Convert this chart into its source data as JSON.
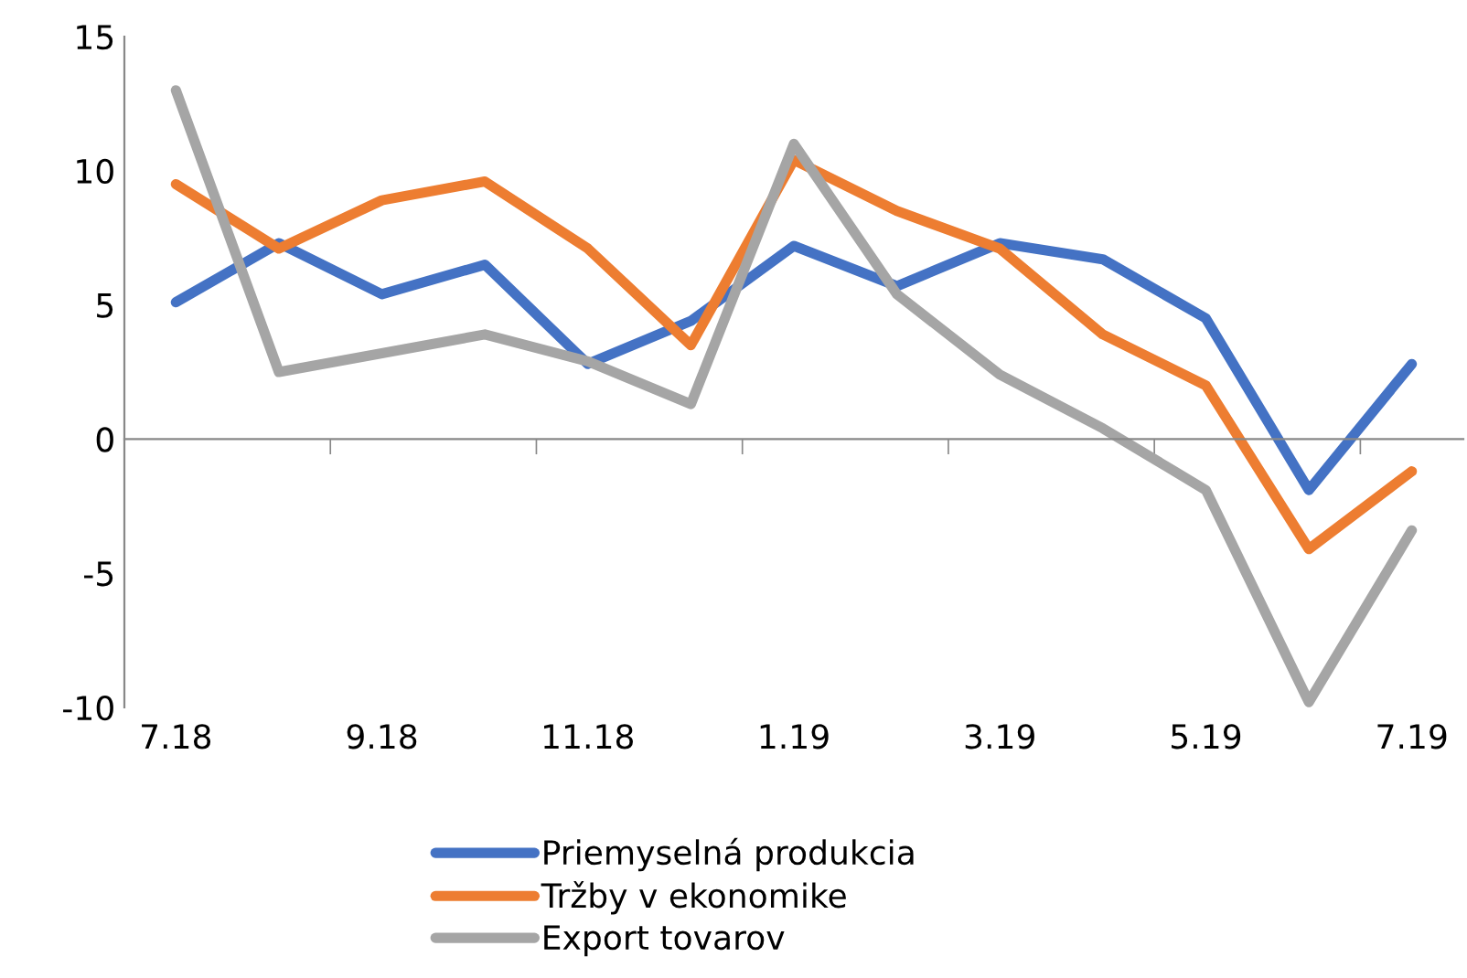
{
  "chart_data": {
    "type": "line",
    "categories": [
      "7.18",
      null,
      "9.18",
      null,
      "11.18",
      null,
      "1.19",
      null,
      "3.19",
      null,
      "5.19",
      null,
      "7.19"
    ],
    "series": [
      {
        "name": "Priemyselná produkcia",
        "color": "#4472c4",
        "values": [
          5.1,
          7.3,
          5.4,
          6.5,
          2.8,
          4.4,
          7.2,
          5.7,
          7.3,
          6.7,
          4.5,
          -1.9,
          2.8
        ]
      },
      {
        "name": "Tržby v ekonomike",
        "color": "#ed7d31",
        "values": [
          9.5,
          7.1,
          8.9,
          9.6,
          7.1,
          3.5,
          10.4,
          8.5,
          7.1,
          3.9,
          2.0,
          -4.1,
          -1.2
        ]
      },
      {
        "name": "Export tovarov",
        "color": "#a5a5a5",
        "values": [
          13.0,
          2.5,
          3.2,
          3.9,
          2.9,
          1.3,
          11.0,
          5.4,
          2.4,
          0.4,
          -1.9,
          -9.8,
          -3.4
        ]
      }
    ],
    "ylim": [
      -10,
      15
    ],
    "yticks": [
      -10,
      -5,
      0,
      5,
      10,
      15
    ],
    "legend": "bottom",
    "marker": "none",
    "line_style": "solid"
  }
}
